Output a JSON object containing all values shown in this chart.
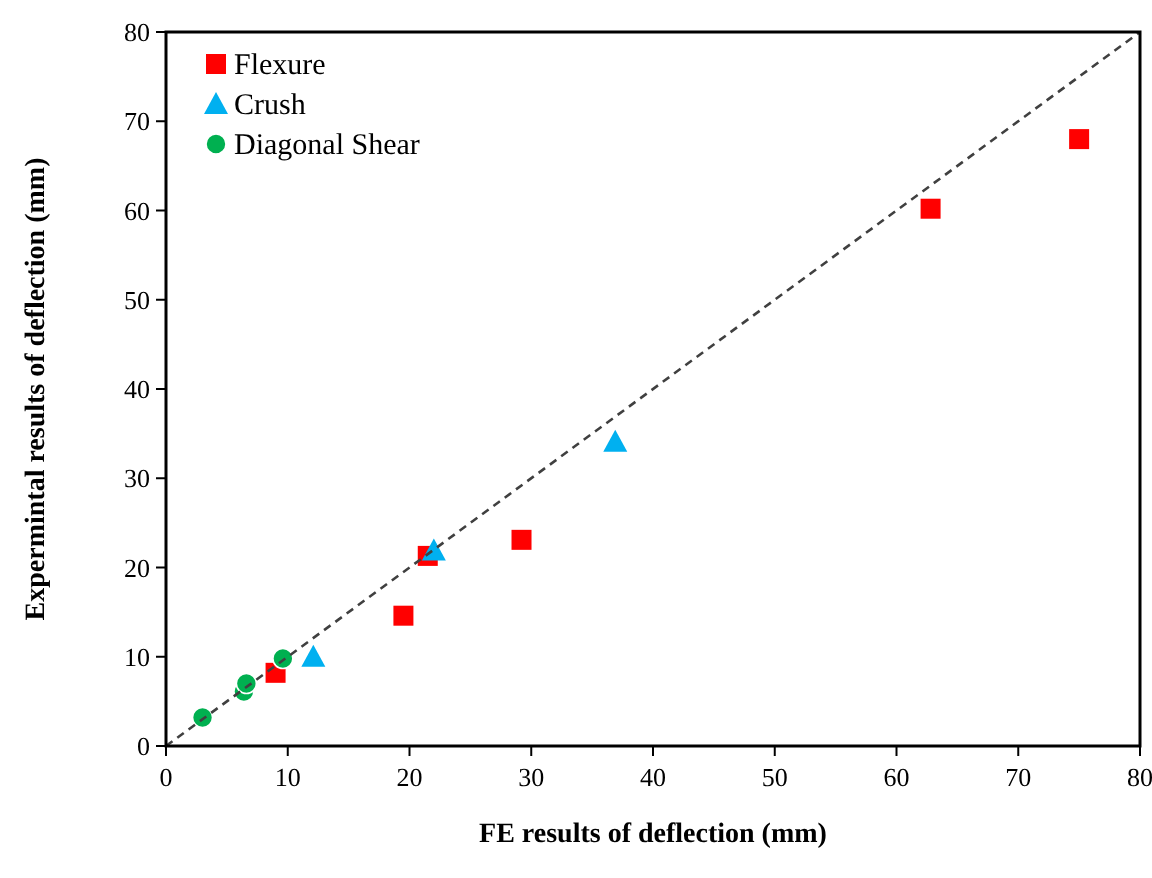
{
  "chart_data": {
    "type": "scatter",
    "xlabel": "FE results of deflection (mm)",
    "ylabel": "Expermintal results of deflection (mm)",
    "xlim": [
      0,
      80
    ],
    "ylim": [
      0,
      80
    ],
    "xticks": [
      0,
      10,
      20,
      30,
      40,
      50,
      60,
      70,
      80
    ],
    "yticks": [
      0,
      10,
      20,
      30,
      40,
      50,
      60,
      70,
      80
    ],
    "grid": false,
    "legend": "top left",
    "series": [
      {
        "name": "Flexure",
        "color": "#ff0000",
        "marker": "square",
        "x": [
          9,
          19.5,
          21.5,
          29.2,
          62.8,
          75
        ],
        "values": [
          8.2,
          14.6,
          21.3,
          23.1,
          60.2,
          68
        ]
      },
      {
        "name": "Crush",
        "color": "#00b0f0",
        "marker": "triangle",
        "x": [
          12.1,
          22,
          36.9
        ],
        "values": [
          10,
          21.9,
          34.1
        ]
      },
      {
        "name": "Diagonal Shear",
        "color": "#00b050",
        "marker": "circle",
        "x": [
          3,
          6.4,
          6.6,
          9.6
        ],
        "values": [
          3.2,
          6.1,
          7.0,
          9.8
        ]
      },
      {
        "type": "line",
        "color": "#404040",
        "line_style": "dashed",
        "marker": "none",
        "x": [
          0,
          80
        ],
        "values": [
          0,
          80
        ]
      }
    ]
  }
}
